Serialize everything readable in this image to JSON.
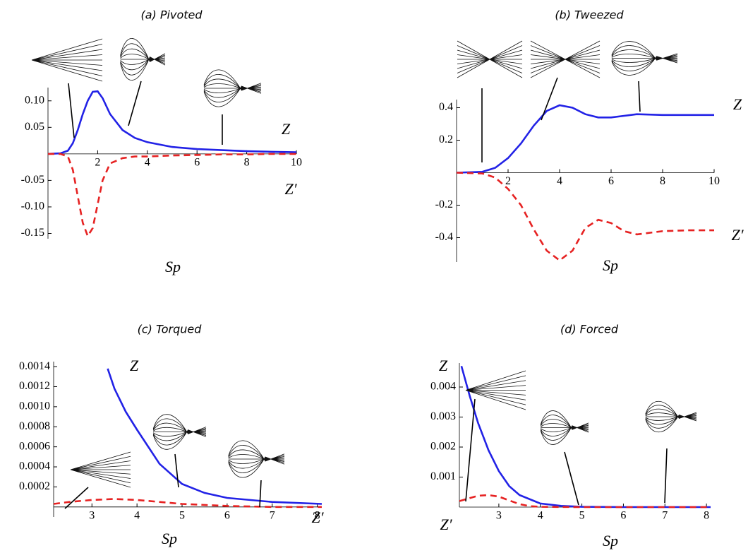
{
  "chart_data": [
    {
      "type": "line",
      "title": "(a) Pivoted",
      "xlabel": "Sp",
      "xlim": [
        0,
        10
      ],
      "ylim": [
        -0.16,
        0.125
      ],
      "xticks": [
        2,
        4,
        6,
        8,
        10
      ],
      "yticks": [
        {
          "value": -0.15,
          "label": "-0.15"
        },
        {
          "value": -0.1,
          "label": "-0.10"
        },
        -0.05,
        0.05,
        {
          "value": 0.1,
          "label": "0.10"
        }
      ],
      "series": [
        {
          "name": "Z",
          "color": "#2222e6",
          "line_style": "solid",
          "x": [
            0,
            0.5,
            0.8,
            1,
            1.2,
            1.4,
            1.6,
            1.8,
            2,
            2.2,
            2.5,
            3,
            3.5,
            4,
            5,
            6,
            7,
            8,
            9,
            10
          ],
          "values": [
            0,
            0.001,
            0.006,
            0.02,
            0.045,
            0.075,
            0.1,
            0.117,
            0.118,
            0.105,
            0.075,
            0.045,
            0.03,
            0.022,
            0.013,
            0.009,
            0.007,
            0.005,
            0.004,
            0.003
          ]
        },
        {
          "name": "Z′",
          "color": "#e62222",
          "line_style": "dashed",
          "x": [
            0,
            0.5,
            0.8,
            1,
            1.2,
            1.4,
            1.6,
            1.8,
            2,
            2.2,
            2.5,
            3,
            3.5,
            4,
            5,
            6,
            7,
            8,
            9,
            10
          ],
          "values": [
            0,
            0,
            -0.005,
            -0.03,
            -0.08,
            -0.13,
            -0.155,
            -0.14,
            -0.095,
            -0.05,
            -0.018,
            -0.008,
            -0.005,
            -0.005,
            -0.003,
            -0.002,
            -0.001,
            -0.001,
            0,
            0
          ]
        }
      ]
    },
    {
      "type": "line",
      "title": "(b) Tweezed",
      "xlabel": "Sp",
      "xlim": [
        0,
        10
      ],
      "ylim": [
        -0.55,
        0.45
      ],
      "xticks": [
        2,
        4,
        6,
        8,
        10
      ],
      "yticks": [
        -0.4,
        -0.2,
        0.2,
        0.4
      ],
      "series": [
        {
          "name": "Z",
          "color": "#2222e6",
          "line_style": "solid",
          "x": [
            0,
            1,
            1.5,
            2,
            2.5,
            3,
            3.5,
            4,
            4.5,
            5,
            5.5,
            6,
            6.5,
            7,
            8,
            9,
            10
          ],
          "values": [
            0,
            0.005,
            0.03,
            0.09,
            0.18,
            0.29,
            0.38,
            0.415,
            0.4,
            0.36,
            0.34,
            0.34,
            0.35,
            0.36,
            0.355,
            0.355,
            0.355
          ]
        },
        {
          "name": "Z′",
          "color": "#e62222",
          "line_style": "dashed",
          "x": [
            0,
            1,
            1.5,
            2,
            2.5,
            3,
            3.5,
            4,
            4.5,
            5,
            5.5,
            6,
            6.5,
            7,
            8,
            9,
            10
          ],
          "values": [
            0,
            -0.005,
            -0.03,
            -0.1,
            -0.2,
            -0.35,
            -0.48,
            -0.54,
            -0.48,
            -0.34,
            -0.29,
            -0.31,
            -0.36,
            -0.38,
            -0.36,
            -0.355,
            -0.355
          ]
        }
      ]
    },
    {
      "type": "line",
      "title": "(c) Torqued",
      "xlabel": "Sp",
      "xlim": [
        2.15,
        8.1
      ],
      "ylim": [
        -0.0001,
        0.00145
      ],
      "xticks": [
        3,
        4,
        5,
        6,
        7,
        8
      ],
      "yticks": [
        0.0002,
        0.0004,
        0.0006,
        0.0008,
        {
          "value": 0.001,
          "label": "0.0010"
        },
        0.0012,
        0.0014
      ],
      "series": [
        {
          "name": "Z",
          "color": "#2222e6",
          "line_style": "solid",
          "x": [
            3.35,
            3.5,
            3.75,
            4,
            4.5,
            5,
            5.5,
            6,
            7,
            8.1
          ],
          "values": [
            0.00138,
            0.00118,
            0.00095,
            0.00077,
            0.00043,
            0.00023,
            0.00014,
            9e-05,
            5e-05,
            3e-05
          ]
        },
        {
          "name": "Z′",
          "color": "#e62222",
          "line_style": "dashed",
          "x": [
            2.15,
            2.5,
            3,
            3.5,
            4,
            4.5,
            5,
            6,
            7,
            8.1
          ],
          "values": [
            3e-05,
            5e-05,
            7e-05,
            8e-05,
            7e-05,
            5e-05,
            3e-05,
            1e-05,
            0,
            0
          ]
        }
      ]
    },
    {
      "type": "line",
      "title": "(d) Forced",
      "xlabel": "Sp",
      "xlim": [
        2.05,
        8.1
      ],
      "ylim": [
        0,
        0.0048
      ],
      "xticks": [
        3,
        4,
        5,
        6,
        7,
        8
      ],
      "yticks": [
        0.001,
        0.002,
        0.003,
        0.004
      ],
      "series": [
        {
          "name": "Z",
          "color": "#2222e6",
          "line_style": "solid",
          "x": [
            2.1,
            2.3,
            2.5,
            2.75,
            3,
            3.25,
            3.5,
            4,
            4.5,
            5,
            6,
            7,
            8.1
          ],
          "values": [
            0.0047,
            0.0037,
            0.0028,
            0.0019,
            0.0012,
            0.0007,
            0.0004,
            0.00012,
            4e-05,
            1e-05,
            0,
            0,
            0
          ]
        },
        {
          "name": "Z′",
          "color": "#e62222",
          "line_style": "dashed",
          "x": [
            2.05,
            2.3,
            2.5,
            2.75,
            3,
            3.25,
            3.5,
            3.75,
            4,
            5,
            6,
            7,
            8.1
          ],
          "values": [
            0.0002,
            0.0003,
            0.00038,
            0.0004,
            0.00035,
            0.00022,
            0.0001,
            3e-05,
            1e-05,
            0,
            0,
            0,
            0
          ]
        }
      ]
    }
  ]
}
